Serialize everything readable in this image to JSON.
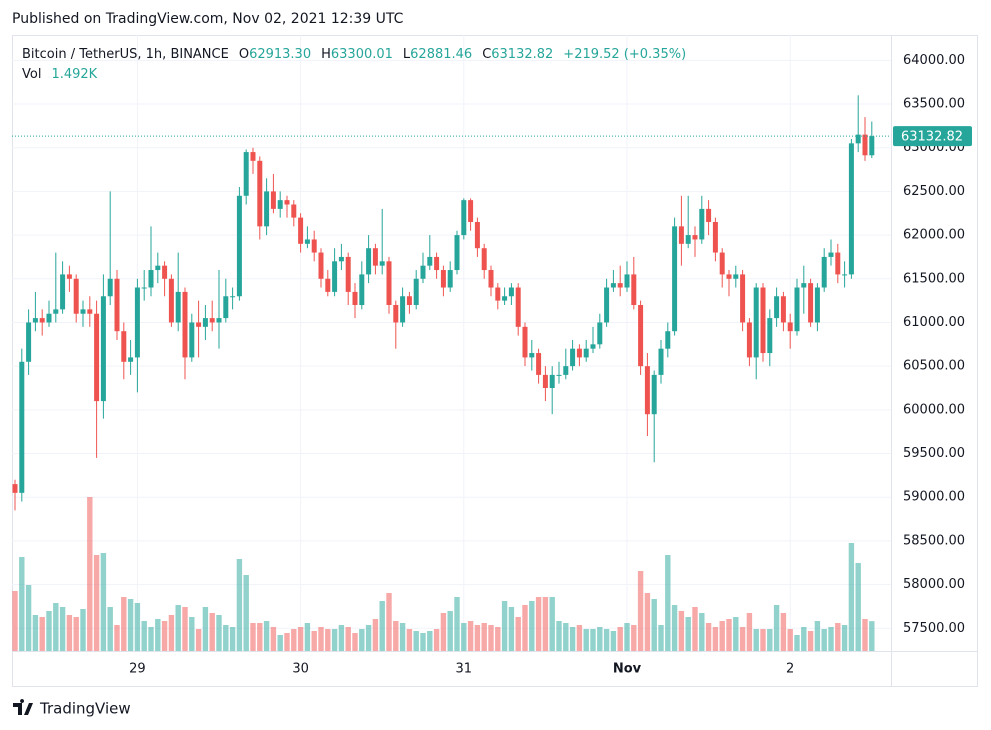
{
  "header": "Published on TradingView.com, Nov 02, 2021 12:39 UTC",
  "footer": "TradingView",
  "legend": {
    "symbol": "Bitcoin / TetherUS, 1h, BINANCE",
    "open_label": "O",
    "open": "62913.30",
    "high_label": "H",
    "high": "63300.01",
    "low_label": "L",
    "low": "62881.46",
    "close_label": "C",
    "close": "63132.82",
    "change": "+219.52 (+0.35%)",
    "volume_label": "Vol",
    "volume": "1.492K"
  },
  "last_price_label": "63132.82",
  "chart_data": {
    "type": "candlestick",
    "up_color": "#26a69a",
    "down_color": "#ef5350",
    "grid": true,
    "ylim": [
      57240,
      64290
    ],
    "yticks": [
      {
        "value": 57500,
        "label": "57500.00"
      },
      {
        "value": 58000,
        "label": "58000.00"
      },
      {
        "value": 58500,
        "label": "58500.00"
      },
      {
        "value": 59000,
        "label": "59000.00"
      },
      {
        "value": 59500,
        "label": "59500.00"
      },
      {
        "value": 60000,
        "label": "60000.00"
      },
      {
        "value": 60500,
        "label": "60500.00"
      },
      {
        "value": 61000,
        "label": "61000.00"
      },
      {
        "value": 61500,
        "label": "61500.00"
      },
      {
        "value": 62000,
        "label": "62000.00"
      },
      {
        "value": 62500,
        "label": "62500.00"
      },
      {
        "value": 63000,
        "label": "63000.00"
      },
      {
        "value": 63500,
        "label": "63500.00"
      },
      {
        "value": 64000,
        "label": "64000.00"
      }
    ],
    "volume_lim": [
      0,
      8
    ],
    "categories": [
      null,
      null,
      null,
      null,
      null,
      null,
      null,
      null,
      null,
      null,
      null,
      null,
      null,
      null,
      null,
      null,
      null,
      null,
      "29",
      null,
      null,
      null,
      null,
      null,
      null,
      null,
      null,
      null,
      null,
      null,
      null,
      null,
      null,
      null,
      null,
      null,
      null,
      null,
      null,
      null,
      null,
      null,
      "30",
      null,
      null,
      null,
      null,
      null,
      null,
      null,
      null,
      null,
      null,
      null,
      null,
      null,
      null,
      null,
      null,
      null,
      null,
      null,
      null,
      null,
      null,
      null,
      "31",
      null,
      null,
      null,
      null,
      null,
      null,
      null,
      null,
      null,
      null,
      null,
      null,
      null,
      null,
      null,
      null,
      null,
      null,
      null,
      null,
      null,
      null,
      null,
      "Nov",
      null,
      null,
      null,
      null,
      null,
      null,
      null,
      null,
      null,
      null,
      null,
      null,
      null,
      null,
      null,
      null,
      null,
      null,
      null,
      null,
      null,
      null,
      null,
      "2",
      null,
      null,
      null,
      null,
      null,
      null,
      null,
      null,
      null,
      null,
      null,
      null
    ],
    "candles": [
      [
        59150,
        59200,
        58850,
        59050
      ],
      [
        59050,
        60700,
        58950,
        60550
      ],
      [
        60550,
        61150,
        60400,
        61000
      ],
      [
        61000,
        61350,
        60900,
        61050
      ],
      [
        61050,
        61150,
        60850,
        61000
      ],
      [
        61000,
        61250,
        60950,
        61100
      ],
      [
        61100,
        61800,
        61000,
        61150
      ],
      [
        61150,
        61700,
        61100,
        61550
      ],
      [
        61550,
        61650,
        61350,
        61500
      ],
      [
        61500,
        61550,
        61000,
        61100
      ],
      [
        61100,
        61250,
        60950,
        61150
      ],
      [
        61150,
        61300,
        60950,
        61100
      ],
      [
        61100,
        61250,
        59450,
        60100
      ],
      [
        60100,
        61550,
        59900,
        61300
      ],
      [
        61300,
        62500,
        61200,
        61500
      ],
      [
        61500,
        61600,
        60800,
        60900
      ],
      [
        60900,
        61000,
        60350,
        60550
      ],
      [
        60550,
        60800,
        60400,
        60600
      ],
      [
        60600,
        61500,
        60200,
        61400
      ],
      [
        61400,
        61600,
        61250,
        61400
      ],
      [
        61400,
        62100,
        61300,
        61600
      ],
      [
        61600,
        61800,
        61450,
        61650
      ],
      [
        61650,
        61700,
        61300,
        61500
      ],
      [
        61500,
        61550,
        60950,
        61000
      ],
      [
        61000,
        61800,
        60900,
        61350
      ],
      [
        61350,
        61400,
        60350,
        60600
      ],
      [
        60600,
        61100,
        60550,
        61000
      ],
      [
        61000,
        61250,
        60600,
        60950
      ],
      [
        60950,
        61200,
        60800,
        61050
      ],
      [
        61050,
        61250,
        60900,
        61000
      ],
      [
        61000,
        61600,
        60700,
        61050
      ],
      [
        61050,
        61500,
        61000,
        61300
      ],
      [
        61300,
        61400,
        61150,
        61300
      ],
      [
        61300,
        62550,
        61250,
        62450
      ],
      [
        62450,
        62980,
        62350,
        62950
      ],
      [
        62950,
        63000,
        62700,
        62850
      ],
      [
        62850,
        62900,
        61950,
        62100
      ],
      [
        62100,
        62650,
        62000,
        62500
      ],
      [
        62500,
        62700,
        62250,
        62300
      ],
      [
        62300,
        62500,
        62200,
        62400
      ],
      [
        62400,
        62450,
        62200,
        62350
      ],
      [
        62350,
        62400,
        62100,
        62200
      ],
      [
        62200,
        62250,
        61800,
        61900
      ],
      [
        61900,
        62100,
        61850,
        61950
      ],
      [
        61950,
        62050,
        61700,
        61800
      ],
      [
        61800,
        61850,
        61400,
        61500
      ],
      [
        61500,
        61600,
        61300,
        61350
      ],
      [
        61350,
        61850,
        61300,
        61700
      ],
      [
        61700,
        61900,
        61600,
        61750
      ],
      [
        61750,
        61800,
        61200,
        61350
      ],
      [
        61350,
        61450,
        61050,
        61200
      ],
      [
        61200,
        61700,
        61150,
        61550
      ],
      [
        61550,
        62000,
        61450,
        61850
      ],
      [
        61850,
        61900,
        61550,
        61650
      ],
      [
        61650,
        62300,
        61550,
        61700
      ],
      [
        61700,
        61750,
        61100,
        61200
      ],
      [
        61200,
        61250,
        60700,
        61000
      ],
      [
        61000,
        61400,
        60950,
        61300
      ],
      [
        61300,
        61350,
        61100,
        61200
      ],
      [
        61200,
        61600,
        61150,
        61500
      ],
      [
        61500,
        61800,
        61450,
        61650
      ],
      [
        61650,
        62000,
        61600,
        61750
      ],
      [
        61750,
        61800,
        61500,
        61600
      ],
      [
        61600,
        61650,
        61300,
        61400
      ],
      [
        61400,
        61700,
        61350,
        61600
      ],
      [
        61600,
        62050,
        61550,
        62000
      ],
      [
        62000,
        62420,
        61950,
        62400
      ],
      [
        62400,
        62420,
        62050,
        62150
      ],
      [
        62150,
        62200,
        61750,
        61850
      ],
      [
        61850,
        61900,
        61500,
        61600
      ],
      [
        61600,
        61650,
        61300,
        61400
      ],
      [
        61400,
        61450,
        61150,
        61250
      ],
      [
        61250,
        61400,
        61200,
        61300
      ],
      [
        61300,
        61450,
        61200,
        61400
      ],
      [
        61400,
        61450,
        60850,
        60950
      ],
      [
        60950,
        61000,
        60500,
        60600
      ],
      [
        60600,
        60800,
        60450,
        60650
      ],
      [
        60650,
        60700,
        60300,
        60400
      ],
      [
        60400,
        60500,
        60100,
        60250
      ],
      [
        60250,
        60500,
        59950,
        60400
      ],
      [
        60400,
        60550,
        60300,
        60400
      ],
      [
        60400,
        60700,
        60350,
        60500
      ],
      [
        60500,
        60800,
        60450,
        60700
      ],
      [
        60700,
        60750,
        60500,
        60600
      ],
      [
        60600,
        60800,
        60550,
        60700
      ],
      [
        60700,
        60950,
        60650,
        60750
      ],
      [
        60750,
        61100,
        60700,
        61000
      ],
      [
        61000,
        61500,
        60950,
        61400
      ],
      [
        61400,
        61600,
        61350,
        61450
      ],
      [
        61450,
        61650,
        61300,
        61400
      ],
      [
        61400,
        61700,
        61350,
        61550
      ],
      [
        61550,
        61750,
        61150,
        61200
      ],
      [
        61200,
        61250,
        60400,
        60500
      ],
      [
        60500,
        60650,
        59700,
        59950
      ],
      [
        59950,
        60450,
        59400,
        60400
      ],
      [
        60400,
        60800,
        60300,
        60700
      ],
      [
        60700,
        61000,
        60600,
        60900
      ],
      [
        60900,
        62200,
        60850,
        62100
      ],
      [
        62100,
        62450,
        61650,
        61900
      ],
      [
        61900,
        62450,
        61850,
        62000
      ],
      [
        62000,
        62100,
        61750,
        61950
      ],
      [
        61950,
        62450,
        61900,
        62300
      ],
      [
        62300,
        62400,
        62000,
        62150
      ],
      [
        62150,
        62200,
        61700,
        61800
      ],
      [
        61800,
        61850,
        61400,
        61550
      ],
      [
        61550,
        61600,
        61300,
        61500
      ],
      [
        61500,
        61650,
        61400,
        61550
      ],
      [
        61550,
        61600,
        60900,
        61000
      ],
      [
        61000,
        61050,
        60500,
        60600
      ],
      [
        60600,
        61450,
        60350,
        61400
      ],
      [
        61400,
        61450,
        60550,
        60650
      ],
      [
        60650,
        61150,
        60500,
        61050
      ],
      [
        61050,
        61400,
        60950,
        61300
      ],
      [
        61300,
        61350,
        60900,
        61000
      ],
      [
        61000,
        61100,
        60700,
        60900
      ],
      [
        60900,
        61500,
        60850,
        61400
      ],
      [
        61400,
        61650,
        61100,
        61450
      ],
      [
        61450,
        61500,
        60950,
        61000
      ],
      [
        61000,
        61450,
        60900,
        61400
      ],
      [
        61400,
        61850,
        61350,
        61750
      ],
      [
        61750,
        61950,
        61650,
        61800
      ],
      [
        61800,
        61900,
        61450,
        61550
      ],
      [
        61550,
        61700,
        61400,
        61550
      ],
      [
        61550,
        63100,
        61500,
        63050
      ],
      [
        63050,
        63600,
        62950,
        63150
      ],
      [
        63150,
        63350,
        62850,
        62913.3
      ],
      [
        62913.3,
        63300.01,
        62881.46,
        63132.82
      ]
    ],
    "volumes": [
      3.0,
      4.7,
      3.3,
      1.8,
      1.7,
      2.0,
      2.4,
      2.2,
      1.8,
      1.7,
      2.1,
      7.7,
      4.8,
      4.9,
      2.2,
      1.3,
      2.7,
      2.6,
      2.4,
      1.5,
      1.2,
      1.6,
      1.5,
      1.8,
      2.3,
      2.2,
      1.7,
      1.1,
      2.2,
      1.9,
      1.8,
      1.3,
      1.2,
      4.6,
      3.8,
      1.4,
      1.4,
      1.5,
      1.2,
      0.8,
      0.9,
      1.1,
      1.2,
      1.4,
      1.0,
      1.2,
      1.1,
      1.1,
      1.3,
      1.2,
      0.9,
      1.1,
      1.3,
      1.6,
      2.5,
      2.9,
      1.5,
      1.4,
      1.1,
      1.0,
      0.9,
      1.0,
      1.1,
      1.9,
      2.0,
      2.7,
      1.4,
      1.5,
      1.3,
      1.4,
      1.3,
      1.2,
      2.5,
      2.2,
      1.7,
      2.3,
      2.5,
      2.7,
      2.7,
      2.7,
      1.5,
      1.4,
      1.2,
      1.3,
      1.1,
      1.1,
      1.2,
      1.1,
      1.0,
      1.2,
      1.4,
      1.3,
      4.0,
      2.9,
      2.6,
      1.3,
      4.8,
      2.3,
      2.0,
      1.7,
      2.2,
      1.9,
      1.4,
      1.2,
      1.5,
      1.6,
      1.7,
      1.2,
      1.9,
      1.1,
      1.1,
      1.1,
      2.3,
      1.9,
      1.1,
      0.8,
      1.2,
      1.0,
      1.5,
      1.1,
      1.2,
      1.4,
      1.3,
      5.4,
      4.4,
      1.6,
      1.492
    ]
  }
}
